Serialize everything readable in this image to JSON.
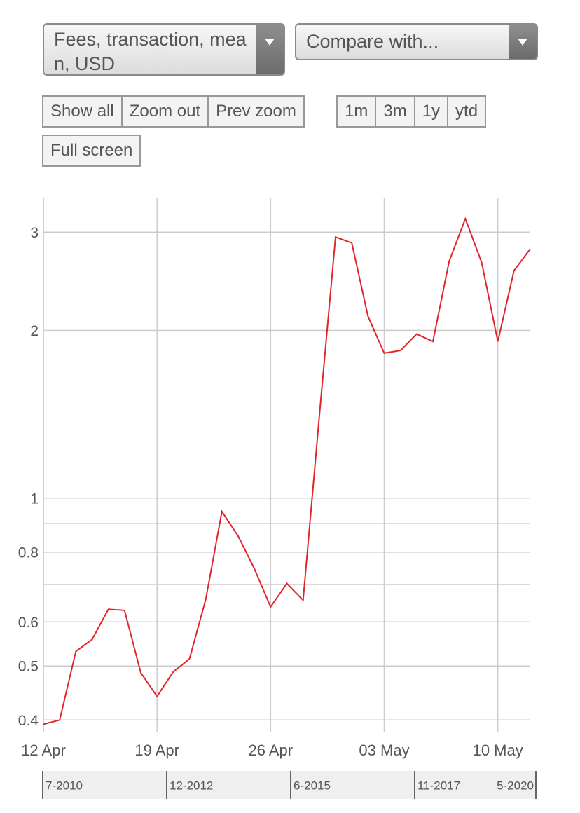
{
  "controls": {
    "metric_select": "Fees, transaction, mean, USD",
    "compare_select": "Compare with...",
    "zoom_buttons": [
      "Show all",
      "Zoom out",
      "Prev zoom"
    ],
    "range_buttons": [
      "1m",
      "3m",
      "1y",
      "ytd"
    ],
    "fullscreen_button": "Full screen"
  },
  "chart_data": {
    "type": "line",
    "log_y": true,
    "grid": true,
    "x": [
      "04-12",
      "04-13",
      "04-14",
      "04-15",
      "04-16",
      "04-17",
      "04-18",
      "04-19",
      "04-20",
      "04-21",
      "04-22",
      "04-23",
      "04-24",
      "04-25",
      "04-26",
      "04-27",
      "04-28",
      "04-29",
      "04-30",
      "05-01",
      "05-02",
      "05-03",
      "05-04",
      "05-05",
      "05-06",
      "05-07",
      "05-08",
      "05-09",
      "05-10",
      "05-11",
      "05-12"
    ],
    "series": [
      {
        "color": "#e0262b",
        "values": [
          0.393,
          0.4,
          0.531,
          0.558,
          0.632,
          0.629,
          0.486,
          0.441,
          0.488,
          0.515,
          0.658,
          0.946,
          0.855,
          0.747,
          0.638,
          0.703,
          0.656,
          1.4,
          2.94,
          2.87,
          2.12,
          1.82,
          1.84,
          1.97,
          1.91,
          2.66,
          3.17,
          2.65,
          1.91,
          2.56,
          2.8
        ]
      }
    ],
    "xlim": [
      "04-12",
      "05-12"
    ],
    "xticks": [
      {
        "value": "04-12",
        "label": "12 Apr"
      },
      {
        "value": "04-19",
        "label": "19 Apr"
      },
      {
        "value": "04-26",
        "label": "26 Apr"
      },
      {
        "value": "05-03",
        "label": "03 May"
      },
      {
        "value": "05-10",
        "label": "10 May"
      }
    ],
    "ylim": [
      0.38,
      3.45
    ],
    "yticks": [
      0.4,
      0.5,
      0.6,
      0.8,
      1,
      2,
      3
    ],
    "minor_yticks": [
      0.7,
      0.9
    ]
  },
  "navigator": {
    "labels": [
      "7-2010",
      "12-2012",
      "6-2015",
      "11-2017",
      "5-2020"
    ]
  }
}
